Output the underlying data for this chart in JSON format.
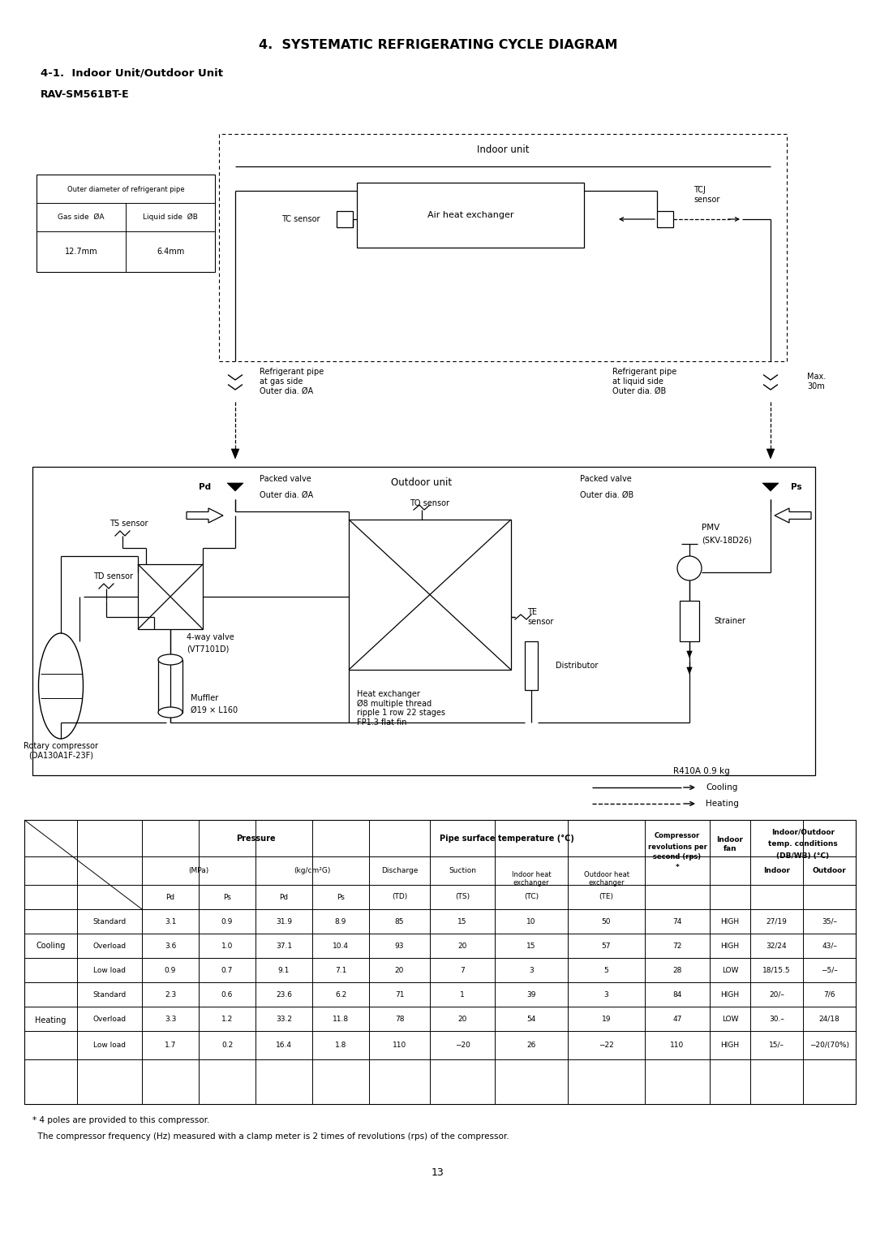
{
  "title": "4.  SYSTEMATIC REFRIGERATING CYCLE DIAGRAM",
  "subtitle": "4-1.  Indoor Unit/Outdoor Unit",
  "model": "RAV-SM561BT-E",
  "refrigerant": "R410A 0.9 kg",
  "cooling_label": "Cooling",
  "heating_label": "Heating",
  "indoor_label": "Indoor unit",
  "outdoor_label": "Outdoor unit",
  "pipe_table_title": "Outer diameter of refrigerant pipe",
  "pipe_col1_hdr": "Gas side  ØA",
  "pipe_col2_hdr": "Liquid side  ØB",
  "pipe_col1_val": "12.7mm",
  "pipe_col2_val": "6.4mm",
  "labels": {
    "air_hx": "Air heat exchanger",
    "tc_sensor": "TC sensor",
    "tcj_sensor": "TCJ\nsensor",
    "ts_sensor": "TS sensor",
    "td_sensor": "TD sensor",
    "to_sensor": "TO sensor",
    "te_sensor": "TE\nsensor",
    "four_way": "4-way valve\n(VT7101D)",
    "muffler": "Muffler\nØ19 × L160",
    "compressor": "Rotary compressor\n(DA130A1F-23F)",
    "heat_exchanger": "Heat exchanger\nØ8 multiple thread\nripple 1 row 22 stages\nFP1.3 flat fin",
    "distributor": "Distributor",
    "pmv": "PMV\n(SKV-18D26)",
    "strainer": "Strainer",
    "packed_valve_l": "Packed valve",
    "packed_valve_r": "Packed valve",
    "outer_dia_a": "Outer dia. ØA",
    "outer_dia_b": "Outer dia. ØB",
    "ref_pipe_gas": "Refrigerant pipe\nat gas side\nOuter dia. ØA",
    "ref_pipe_liq": "Refrigerant pipe\nat liquid side\nOuter dia. ØB",
    "max30m": "Max.\n30m",
    "pd": "Pd",
    "ps": "Ps"
  },
  "table_rows": [
    [
      "Cooling",
      "Standard",
      "3.1",
      "0.9",
      "31.9",
      "8.9",
      "85",
      "15",
      "10",
      "50",
      "74",
      "HIGH",
      "27/19",
      "35/–"
    ],
    [
      "Cooling",
      "Overload",
      "3.6",
      "1.0",
      "37.1",
      "10.4",
      "93",
      "20",
      "15",
      "57",
      "72",
      "HIGH",
      "32/24",
      "43/–"
    ],
    [
      "Cooling",
      "Low load",
      "0.9",
      "0.7",
      "9.1",
      "7.1",
      "20",
      "7",
      "3",
      "5",
      "28",
      "LOW",
      "18/15.5",
      "−5/–"
    ],
    [
      "Heating",
      "Standard",
      "2.3",
      "0.6",
      "23.6",
      "6.2",
      "71",
      "1",
      "39",
      "3",
      "84",
      "HIGH",
      "20/–",
      "7/6"
    ],
    [
      "Heating",
      "Overload",
      "3.3",
      "1.2",
      "33.2",
      "11.8",
      "78",
      "20",
      "54",
      "19",
      "47",
      "LOW",
      "30.–",
      "24/18"
    ],
    [
      "Heating",
      "Low load",
      "1.7",
      "0.2",
      "16.4",
      "1.8",
      "110",
      "−20",
      "26",
      "−22",
      "110",
      "HIGH",
      "15/–",
      "−20/(70%)"
    ]
  ],
  "footnote1": "* 4 poles are provided to this compressor.",
  "footnote2": "  The compressor frequency (Hz) measured with a clamp meter is 2 times of revolutions (rps) of the compressor.",
  "page_number": "13"
}
